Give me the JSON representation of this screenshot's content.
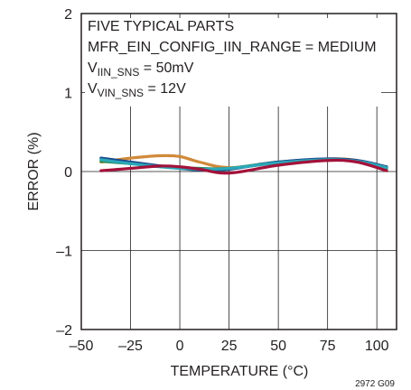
{
  "chart_data": {
    "type": "line",
    "xlabel": "TEMPERATURE (°C)",
    "ylabel": "ERROR (%)",
    "xlim": [
      -50,
      110
    ],
    "ylim": [
      -2,
      2
    ],
    "x_ticks": [
      -50,
      -25,
      0,
      25,
      50,
      75,
      100
    ],
    "y_ticks": [
      -2,
      -1,
      0,
      1,
      2
    ],
    "x_tick_labels": [
      "–50",
      "–25",
      "0",
      "25",
      "50",
      "75",
      "100"
    ],
    "y_tick_labels": [
      "–2",
      "–1",
      "0",
      "1",
      "2"
    ],
    "grid": true,
    "legend": "none",
    "annotations": {
      "line1": "FIVE TYPICAL PARTS",
      "line2": "MFR_EIN_CONFIG_IIN_RANGE = MEDIUM",
      "line3_main": "V",
      "line3_sub": "IIN_SNS",
      "line3_rest": " = 50mV",
      "line4_main": "V",
      "line4_sub": "VIN_SNS",
      "line4_rest": " = 12V"
    },
    "figure_id": "2972 G09",
    "series": [
      {
        "color": "#d08a3a",
        "x": [
          -40,
          -25,
          -10,
          0,
          10,
          25,
          50,
          75,
          90,
          105
        ],
        "y": [
          0.12,
          0.17,
          0.2,
          0.19,
          0.12,
          0.05,
          0.11,
          0.16,
          0.14,
          0.05
        ]
      },
      {
        "color": "#2b8a4a",
        "x": [
          -40,
          -25,
          -10,
          0,
          10,
          25,
          50,
          75,
          90,
          105
        ],
        "y": [
          0.13,
          0.1,
          0.07,
          0.05,
          0.04,
          0.04,
          0.12,
          0.15,
          0.13,
          0.04
        ]
      },
      {
        "color": "#1b4a8c",
        "x": [
          -40,
          -25,
          -10,
          0,
          10,
          25,
          50,
          75,
          90,
          105
        ],
        "y": [
          0.17,
          0.12,
          0.07,
          0.04,
          0.02,
          0.03,
          0.12,
          0.16,
          0.14,
          0.06
        ]
      },
      {
        "color": "#2ba8b8",
        "x": [
          -40,
          -25,
          -10,
          0,
          10,
          25,
          50,
          75,
          90,
          105
        ],
        "y": [
          0.15,
          0.1,
          0.06,
          0.04,
          0.03,
          0.04,
          0.11,
          0.15,
          0.13,
          0.05
        ]
      },
      {
        "color": "#a3123a",
        "x": [
          -40,
          -25,
          -10,
          0,
          10,
          25,
          50,
          75,
          90,
          105
        ],
        "y": [
          0.01,
          0.04,
          0.07,
          0.06,
          0.03,
          -0.02,
          0.08,
          0.14,
          0.12,
          0.01
        ]
      }
    ]
  }
}
